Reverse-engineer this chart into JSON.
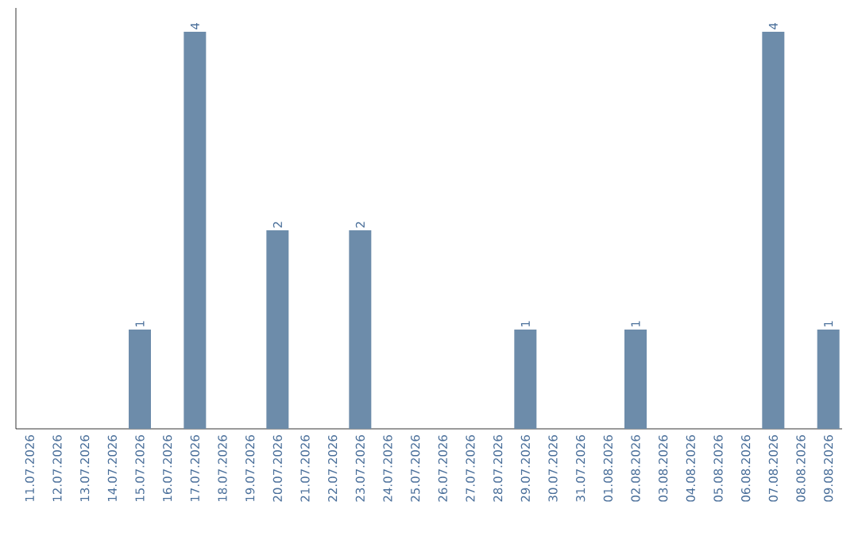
{
  "chart_data": {
    "type": "bar",
    "categories": [
      "11.07.2026",
      "12.07.2026",
      "13.07.2026",
      "14.07.2026",
      "15.07.2026",
      "16.07.2026",
      "17.07.2026",
      "18.07.2026",
      "19.07.2026",
      "20.07.2026",
      "21.07.2026",
      "22.07.2026",
      "23.07.2026",
      "24.07.2026",
      "25.07.2026",
      "26.07.2026",
      "27.07.2026",
      "28.07.2026",
      "29.07.2026",
      "30.07.2026",
      "31.07.2026",
      "01.08.2026",
      "02.08.2026",
      "03.08.2026",
      "04.08.2026",
      "05.08.2026",
      "06.08.2026",
      "07.08.2026",
      "08.08.2026",
      "09.08.2026"
    ],
    "values": [
      0,
      0,
      0,
      0,
      1,
      0,
      4,
      0,
      0,
      2,
      0,
      0,
      2,
      0,
      0,
      0,
      0,
      0,
      1,
      0,
      0,
      0,
      1,
      0,
      0,
      0,
      0,
      4,
      0,
      1
    ],
    "value_labels": [
      null,
      null,
      null,
      null,
      "1",
      null,
      "4",
      null,
      null,
      "2",
      null,
      null,
      "2",
      null,
      null,
      null,
      null,
      null,
      "1",
      null,
      null,
      null,
      "1",
      null,
      null,
      null,
      null,
      "4",
      null,
      "1"
    ],
    "color": "#6d8caa",
    "tick_labels": "x"
  }
}
